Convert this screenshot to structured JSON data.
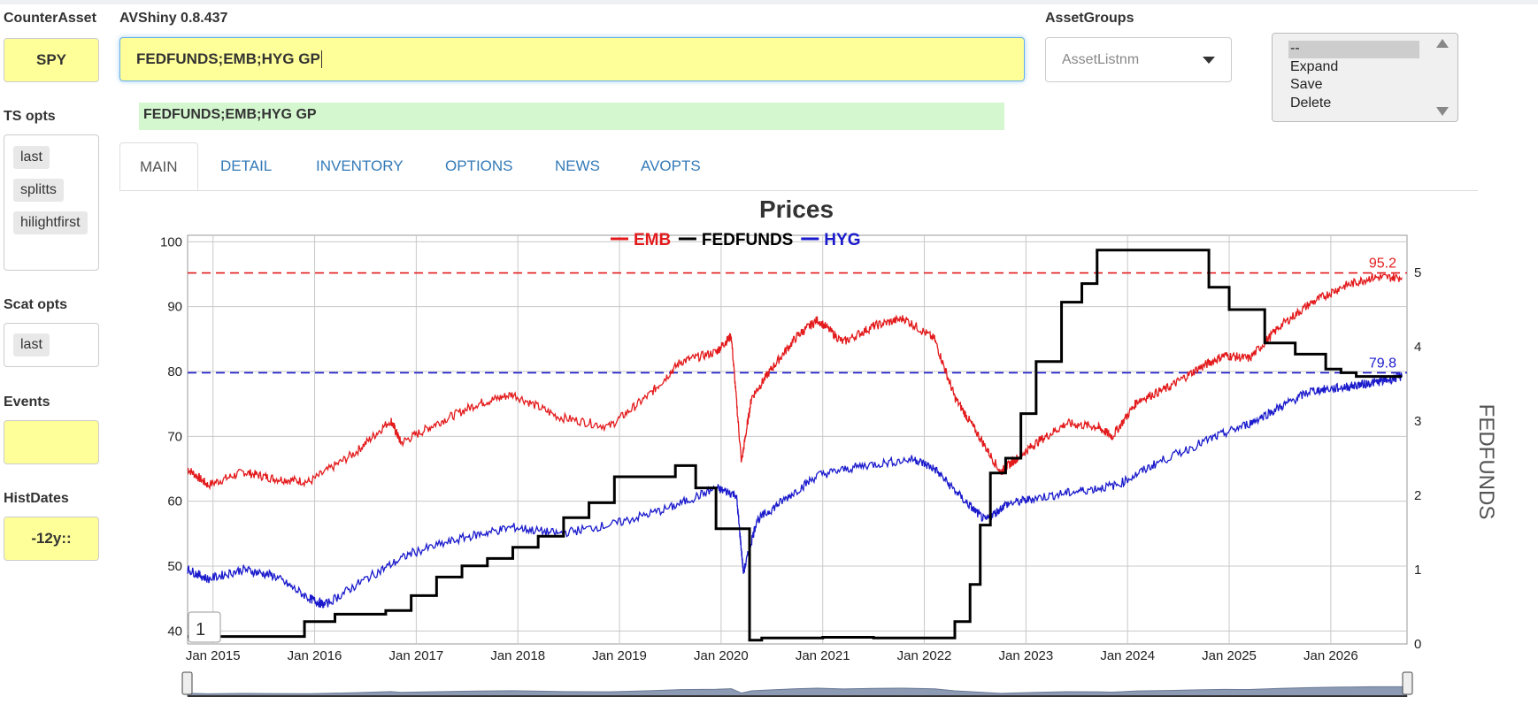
{
  "app": {
    "version_label": "AVShiny 0.8.437"
  },
  "left": {
    "counter_asset": {
      "label": "CounterAsset",
      "value": "SPY"
    },
    "ts_opts": {
      "label": "TS opts",
      "chips": [
        "last",
        "splitts",
        "hilightfirst"
      ]
    },
    "scat_opts": {
      "label": "Scat opts",
      "chips": [
        "last"
      ]
    },
    "events": {
      "label": "Events",
      "value": ""
    },
    "hist_dates": {
      "label": "HistDates",
      "value": "-12y::"
    }
  },
  "query": {
    "value": "FEDFUNDS;EMB;HYG GP",
    "echo": "FEDFUNDS;EMB;HYG GP"
  },
  "asset_groups": {
    "label": "AssetGroups",
    "select_placeholder": "AssetListnm"
  },
  "actions_list": {
    "options": [
      "--",
      "Expand",
      "Save",
      "Delete"
    ],
    "selected": "--"
  },
  "tabs": [
    {
      "label": "MAIN",
      "active": true
    },
    {
      "label": "DETAIL"
    },
    {
      "label": "INVENTORY"
    },
    {
      "label": "OPTIONS"
    },
    {
      "label": "NEWS"
    },
    {
      "label": "AVOPTS"
    }
  ],
  "chart_data": {
    "type": "line",
    "title": "Prices",
    "y2label": "FEDFUNDS",
    "legend": {
      "placement": "top-center"
    },
    "x_ticks": [
      "Jan 2015",
      "Jan 2016",
      "Jan 2017",
      "Jan 2018",
      "Jan 2019",
      "Jan 2020",
      "Jan 2021",
      "Jan 2022",
      "Jan 2023",
      "Jan 2024",
      "Jan 2025",
      "Jan 2026"
    ],
    "xlim": [
      2014.75,
      2026.75
    ],
    "ylim": [
      38,
      101
    ],
    "y_ticks": [
      40,
      50,
      60,
      70,
      80,
      90,
      100
    ],
    "y2lim": [
      0,
      5.5
    ],
    "y2_ticks": [
      0,
      1,
      2,
      3,
      4,
      5
    ],
    "grid": true,
    "page_indicator": "1",
    "colors": {
      "EMB": "#e31a1c",
      "FEDFUNDS": "#000000",
      "HYG": "#1a1acc",
      "range": "#8c9ab3"
    },
    "reference_lines": [
      {
        "series": "EMB",
        "y": 95.2,
        "label": "95.2",
        "color": "#e31a1c"
      },
      {
        "series": "HYG",
        "y": 79.8,
        "label": "79.8",
        "color": "#1a1acc"
      }
    ],
    "series": [
      {
        "name": "EMB",
        "axis": "left",
        "x": [
          2014.75,
          2014.95,
          2015.3,
          2015.6,
          2015.95,
          2016.4,
          2016.75,
          2016.85,
          2017.2,
          2017.6,
          2017.95,
          2018.4,
          2018.9,
          2019.3,
          2019.6,
          2019.95,
          2020.1,
          2020.2,
          2020.3,
          2020.5,
          2020.75,
          2020.95,
          2021.2,
          2021.5,
          2021.8,
          2022.1,
          2022.3,
          2022.5,
          2022.75,
          2022.9,
          2023.1,
          2023.4,
          2023.7,
          2023.85,
          2024.1,
          2024.4,
          2024.7,
          2024.95,
          2025.2,
          2025.5,
          2025.8,
          2026.1,
          2026.4,
          2026.7
        ],
        "y": [
          65,
          62.5,
          64.5,
          63.5,
          63,
          67.5,
          72.5,
          69,
          72,
          75,
          76.5,
          73,
          71.5,
          76.5,
          81.5,
          83,
          85.5,
          66,
          76,
          80.5,
          85.5,
          88,
          84.5,
          87,
          88.2,
          85,
          76,
          71,
          64.5,
          66.5,
          69,
          72,
          71.5,
          70,
          75.5,
          77.5,
          80.5,
          82.5,
          82,
          87,
          90.5,
          93,
          94.5,
          94.5
        ]
      },
      {
        "name": "HYG",
        "axis": "left",
        "x": [
          2014.75,
          2014.95,
          2015.3,
          2015.6,
          2015.95,
          2016.1,
          2016.5,
          2016.95,
          2017.5,
          2017.95,
          2018.4,
          2018.95,
          2019.5,
          2019.95,
          2020.15,
          2020.22,
          2020.35,
          2020.6,
          2020.95,
          2021.4,
          2021.9,
          2022.1,
          2022.4,
          2022.6,
          2022.8,
          2023.1,
          2023.5,
          2023.9,
          2024.3,
          2024.8,
          2025.2,
          2025.5,
          2025.8,
          2026.1,
          2026.3,
          2026.5,
          2026.7
        ],
        "y": [
          49.5,
          48,
          49.5,
          48.5,
          45,
          44,
          48,
          52,
          54.5,
          56,
          55,
          56.5,
          59,
          62,
          61,
          49,
          57,
          60,
          64,
          65.5,
          66.5,
          65,
          60,
          57,
          59.5,
          60.5,
          61.5,
          62.5,
          66,
          69.5,
          72,
          74.5,
          77,
          77.5,
          78,
          78.5,
          79.2
        ]
      },
      {
        "name": "FEDFUNDS",
        "axis": "right",
        "step": true,
        "x": [
          2014.75,
          2015.9,
          2016.2,
          2016.7,
          2016.95,
          2017.2,
          2017.45,
          2017.7,
          2017.95,
          2018.2,
          2018.45,
          2018.7,
          2018.95,
          2019.55,
          2019.75,
          2019.95,
          2020.18,
          2020.28,
          2020.4,
          2021.0,
          2021.5,
          2022.2,
          2022.3,
          2022.45,
          2022.55,
          2022.65,
          2022.8,
          2022.95,
          2023.1,
          2023.35,
          2023.55,
          2023.7,
          2024.7,
          2024.8,
          2025.0,
          2025.35,
          2025.65,
          2025.95,
          2026.1,
          2026.25,
          2026.7
        ],
        "y": [
          0.1,
          0.3,
          0.4,
          0.45,
          0.65,
          0.9,
          1.05,
          1.15,
          1.3,
          1.45,
          1.7,
          1.9,
          2.25,
          2.4,
          2.1,
          1.55,
          1.55,
          0.05,
          0.08,
          0.09,
          0.08,
          0.08,
          0.3,
          0.8,
          1.6,
          2.3,
          2.5,
          3.1,
          3.8,
          4.6,
          4.85,
          5.3,
          5.3,
          4.8,
          4.5,
          4.05,
          3.9,
          3.7,
          3.65,
          3.6,
          3.6
        ]
      }
    ]
  }
}
